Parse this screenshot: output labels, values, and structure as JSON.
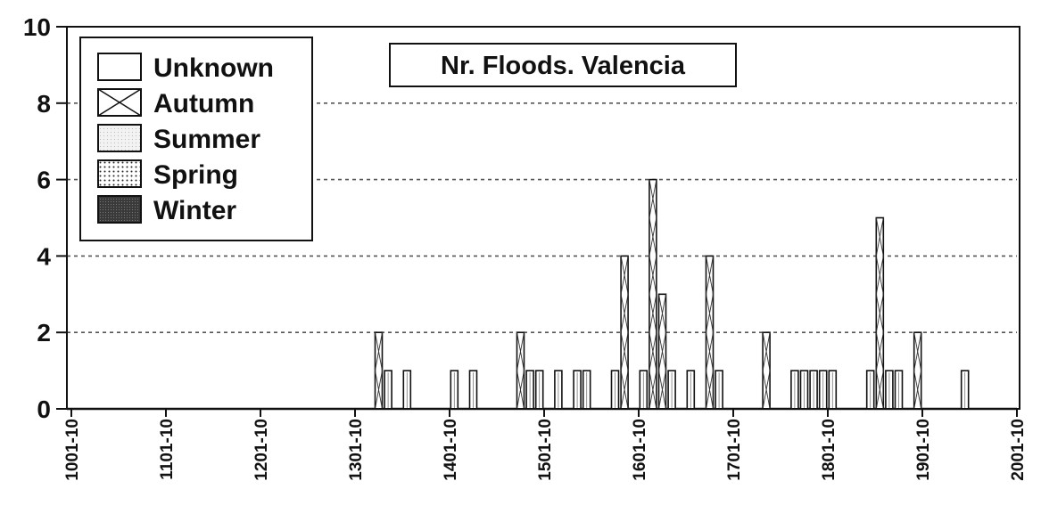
{
  "chart_data": {
    "type": "bar",
    "stacked": true,
    "title": "Nr. Floods. Valencia",
    "xlabel": "",
    "ylabel": "",
    "x_tick_labels": [
      "1001-10",
      "1101-10",
      "1201-10",
      "1301-10",
      "1401-10",
      "1501-10",
      "1601-10",
      "1701-10",
      "1801-10",
      "1901-10",
      "2001-10"
    ],
    "ylim": [
      0,
      10
    ],
    "y_ticks": [
      "0",
      "2",
      "4",
      "6",
      "8",
      "10"
    ],
    "grid": "horizontal dashed",
    "legend_position": "top-left",
    "legend": [
      {
        "name": "Unknown",
        "pattern": "blank"
      },
      {
        "name": "Autumn",
        "pattern": "cross"
      },
      {
        "name": "Summer",
        "pattern": "light"
      },
      {
        "name": "Spring",
        "pattern": "dots"
      },
      {
        "name": "Winter",
        "pattern": "dark"
      }
    ],
    "decades": [
      "1321-30",
      "1331-40",
      "1351-60",
      "1401-10",
      "1421-30",
      "1471-80",
      "1481-90",
      "1491-1500",
      "1511-20",
      "1531-40",
      "1541-50",
      "1571-80",
      "1581-90",
      "1601-10",
      "1611-20",
      "1621-30",
      "1631-40",
      "1651-60",
      "1671-80",
      "1681-90",
      "1731-40",
      "1761-70",
      "1771-80",
      "1781-90",
      "1791-1800",
      "1801-10",
      "1841-50",
      "1851-60",
      "1861-70",
      "1871-80",
      "1891-1900",
      "1941-50"
    ],
    "totals": [
      2,
      1,
      1,
      1,
      1,
      2,
      1,
      1,
      1,
      1,
      1,
      1,
      4,
      1,
      6,
      3,
      1,
      1,
      4,
      1,
      2,
      1,
      1,
      1,
      1,
      1,
      1,
      5,
      1,
      1,
      2,
      1
    ]
  }
}
